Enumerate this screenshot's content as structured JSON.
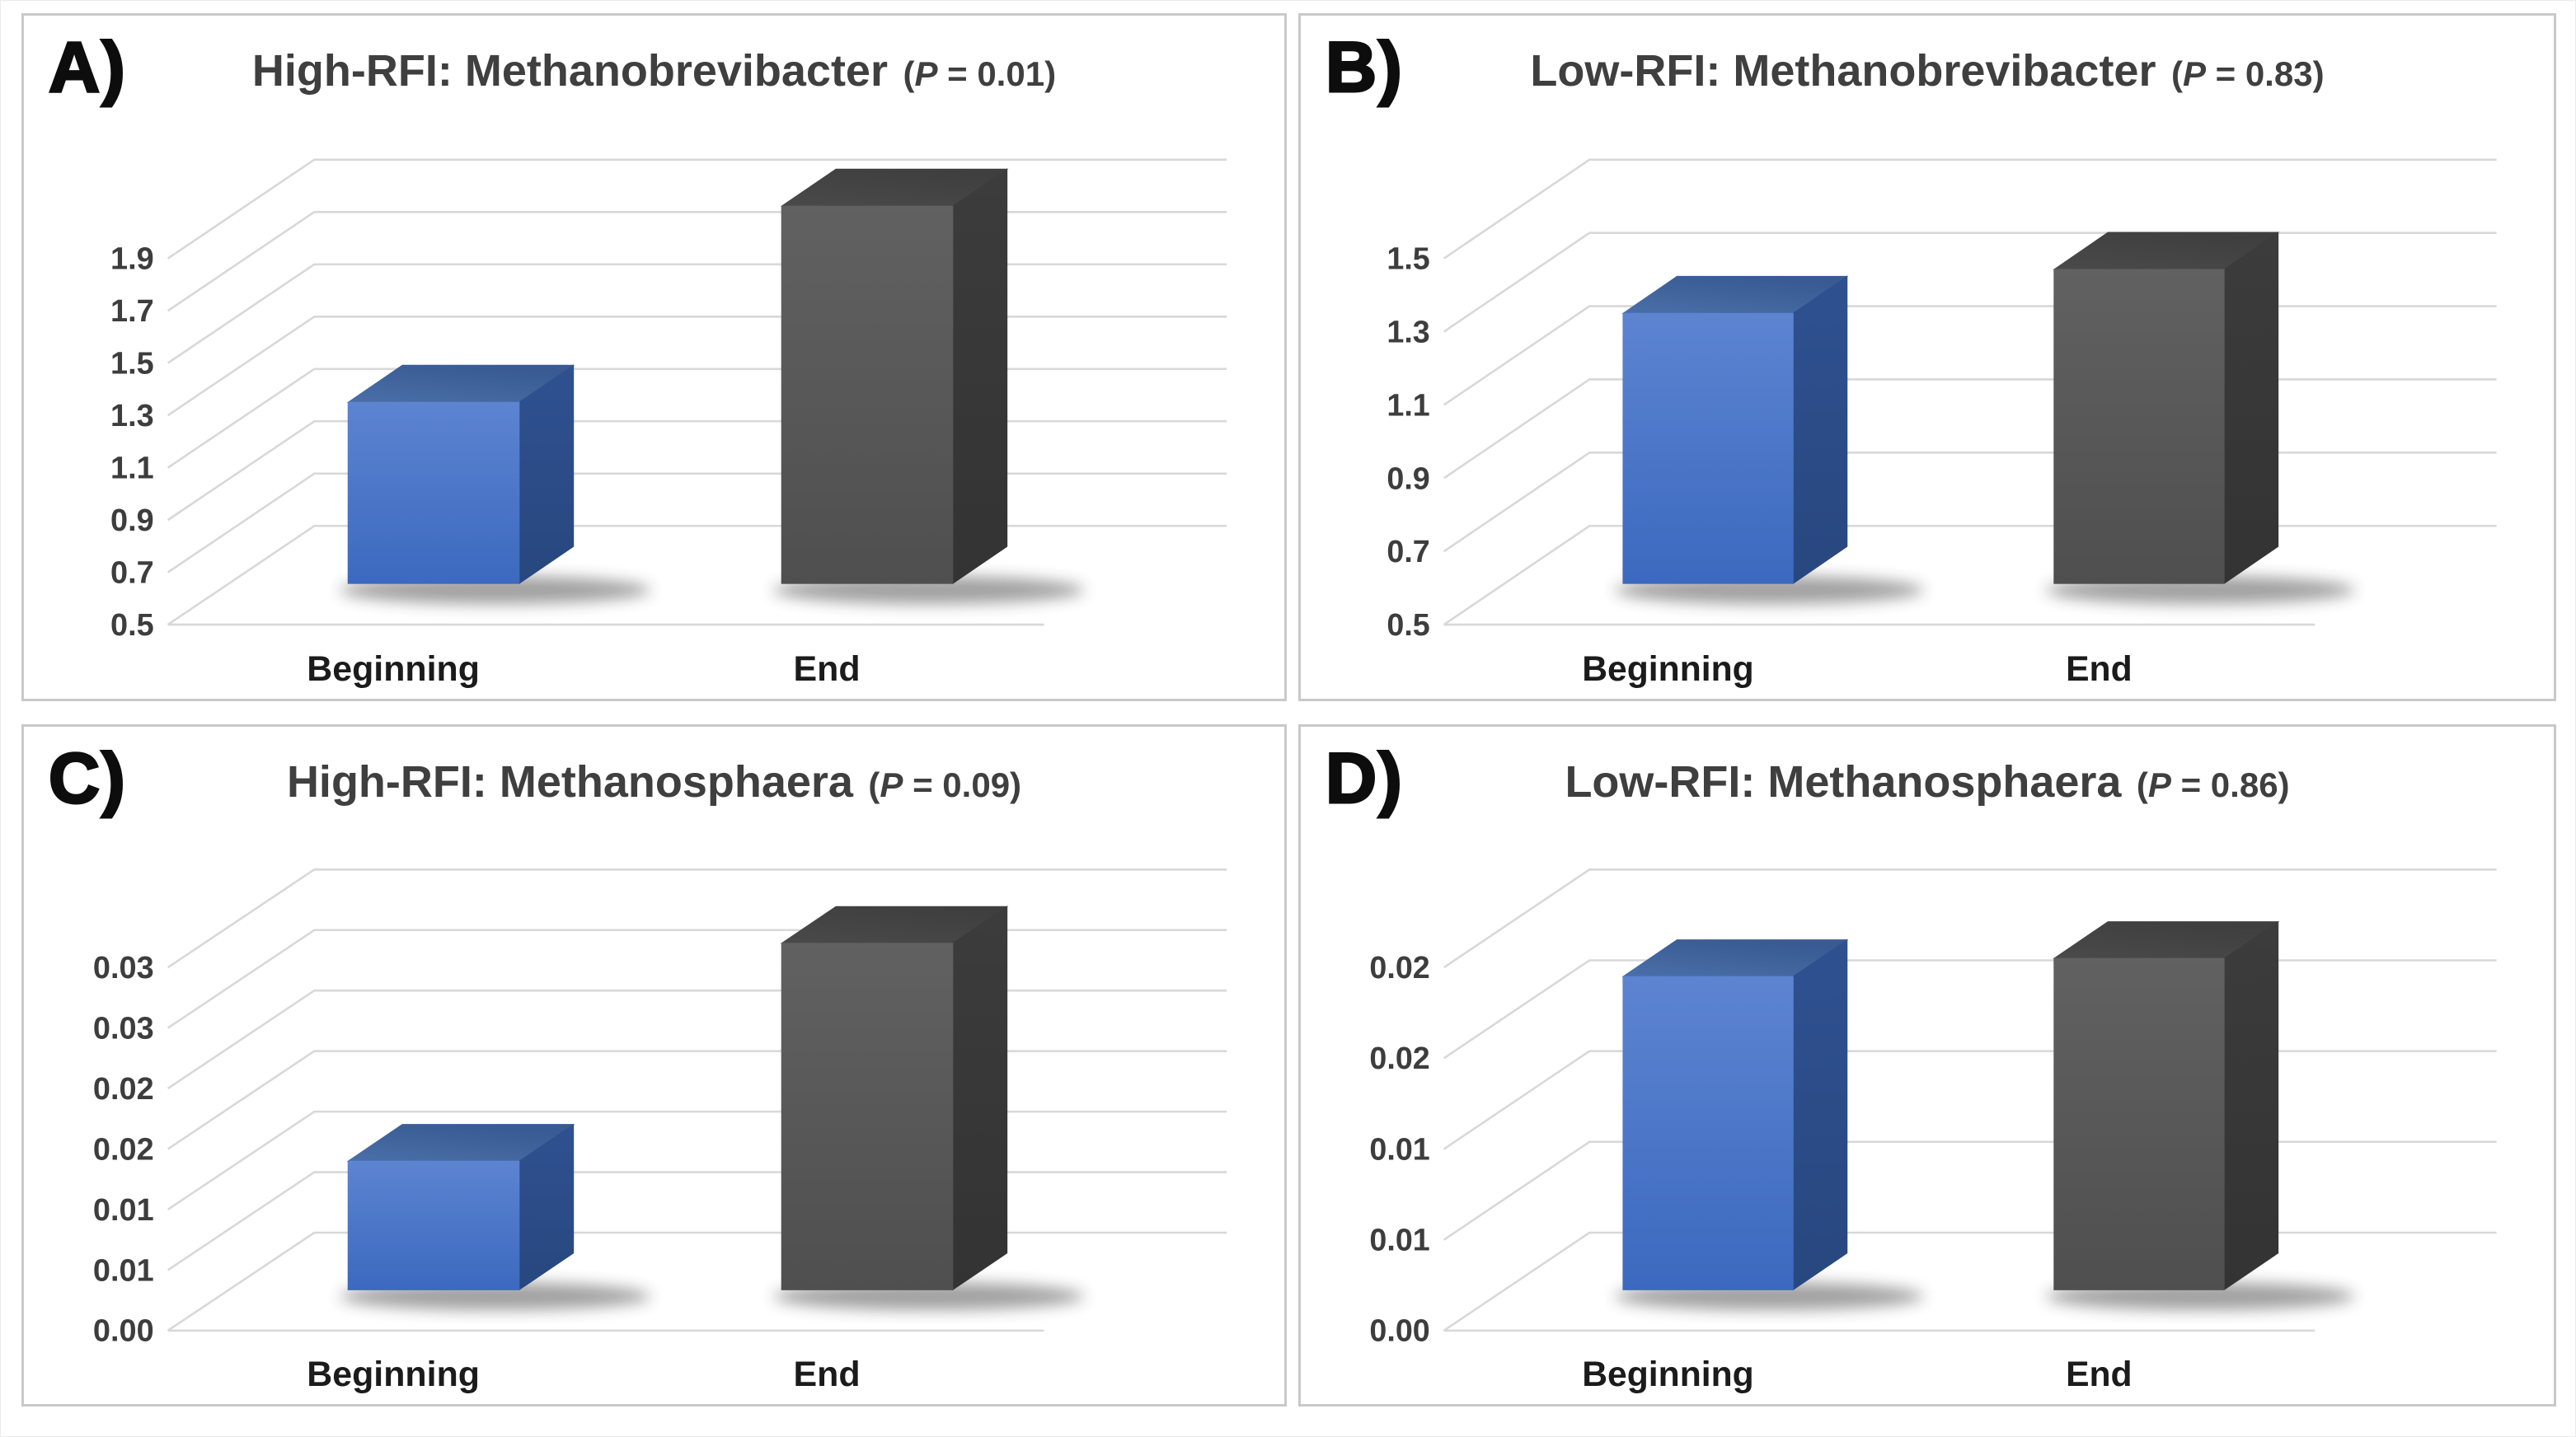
{
  "figure": {
    "background": "#FFFFFF",
    "panel_border_color": "#C9C9C9",
    "gridline_color": "#D8D8D8",
    "text_color": "#3F3F3F",
    "panels": [
      {
        "id": "A",
        "letter": "A)",
        "title": "High-RFI: Methanobrevibacter",
        "p_label": "(P = 0.01)"
      },
      {
        "id": "B",
        "letter": "B)",
        "title": "Low-RFI: Methanobrevibacter",
        "p_label": "(P = 0.83)"
      },
      {
        "id": "C",
        "letter": "C)",
        "title": "High-RFI: Methanosphaera",
        "p_label": "(P = 0.09)"
      },
      {
        "id": "D",
        "letter": "D)",
        "title": "Low-RFI: Methanosphaera",
        "p_label": "(P = 0.86)"
      }
    ]
  },
  "chart_data": [
    {
      "type": "bar",
      "projection": "3d-column",
      "panel": "A",
      "title": "High-RFI: Methanobrevibacter",
      "p_value_text": "P = 0.01",
      "categories": [
        "Beginning",
        "End"
      ],
      "values": [
        1.35,
        2.1
      ],
      "y_axis": {
        "min": 0.5,
        "step": 0.2,
        "tick_labels": [
          "0.5",
          "0.7",
          "0.9",
          "1.1",
          "1.3",
          "1.5",
          "1.7",
          "1.9"
        ]
      },
      "grid": true,
      "legend": false,
      "bar_styles": [
        {
          "name": "blue",
          "front": [
            "#5C84D1",
            "#3C69BF"
          ],
          "top": [
            "#4A6FA8",
            "#395A92"
          ],
          "side": [
            "#2F5190",
            "#28477F"
          ]
        },
        {
          "name": "dark-gray",
          "front": [
            "#616161",
            "#4F4F4F"
          ],
          "top": [
            "#4A4A4A",
            "#3F3F3F"
          ],
          "side": [
            "#3C3C3C",
            "#333333"
          ]
        }
      ]
    },
    {
      "type": "bar",
      "projection": "3d-column",
      "panel": "B",
      "title": "Low-RFI: Methanobrevibacter",
      "p_value_text": "P = 0.83",
      "categories": [
        "Beginning",
        "End"
      ],
      "values": [
        1.35,
        1.47
      ],
      "y_axis": {
        "min": 0.5,
        "step": 0.2,
        "tick_labels": [
          "0.5",
          "0.7",
          "0.9",
          "1.1",
          "1.3",
          "1.5"
        ]
      },
      "grid": true,
      "legend": false,
      "bar_styles": [
        {
          "name": "blue",
          "front": [
            "#5C84D1",
            "#3C69BF"
          ],
          "top": [
            "#4A6FA8",
            "#395A92"
          ],
          "side": [
            "#2F5190",
            "#28477F"
          ]
        },
        {
          "name": "dark-gray",
          "front": [
            "#616161",
            "#4F4F4F"
          ],
          "top": [
            "#4A4A4A",
            "#3F3F3F"
          ],
          "side": [
            "#3C3C3C",
            "#333333"
          ]
        }
      ]
    },
    {
      "type": "bar",
      "projection": "3d-column",
      "panel": "C",
      "title": "High-RFI: Methanosphaera",
      "p_value_text": "P = 0.09",
      "categories": [
        "Beginning",
        "End"
      ],
      "values": [
        0.014,
        0.032
      ],
      "y_axis": {
        "min": 0,
        "step": 0.005,
        "tick_labels": [
          "0.00",
          "0.01",
          "0.01",
          "0.02",
          "0.02",
          "0.03",
          "0.03"
        ]
      },
      "grid": true,
      "legend": false,
      "bar_styles": [
        {
          "name": "blue",
          "front": [
            "#5C84D1",
            "#3C69BF"
          ],
          "top": [
            "#4A6FA8",
            "#395A92"
          ],
          "side": [
            "#2F5190",
            "#28477F"
          ]
        },
        {
          "name": "dark-gray",
          "front": [
            "#616161",
            "#4F4F4F"
          ],
          "top": [
            "#4A4A4A",
            "#3F3F3F"
          ],
          "side": [
            "#3C3C3C",
            "#333333"
          ]
        }
      ]
    },
    {
      "type": "bar",
      "projection": "3d-column",
      "panel": "D",
      "title": "Low-RFI: Methanosphaera",
      "p_value_text": "P = 0.86",
      "categories": [
        "Beginning",
        "End"
      ],
      "values": [
        0.0195,
        0.0205
      ],
      "y_axis": {
        "min": 0,
        "step": 0.005,
        "tick_labels": [
          "0.00",
          "0.01",
          "0.01",
          "0.02",
          "0.02"
        ]
      },
      "grid": true,
      "legend": false,
      "bar_styles": [
        {
          "name": "blue",
          "front": [
            "#5C84D1",
            "#3C69BF"
          ],
          "top": [
            "#4A6FA8",
            "#395A92"
          ],
          "side": [
            "#2F5190",
            "#28477F"
          ]
        },
        {
          "name": "dark-gray",
          "front": [
            "#616161",
            "#4F4F4F"
          ],
          "top": [
            "#4A4A4A",
            "#3F3F3F"
          ],
          "side": [
            "#3C3C3C",
            "#333333"
          ]
        }
      ]
    }
  ]
}
